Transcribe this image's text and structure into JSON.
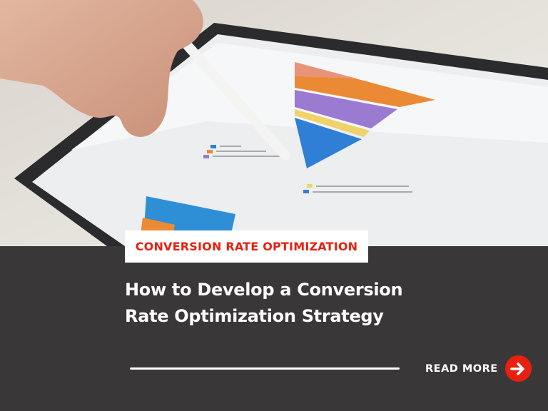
{
  "category_tag": "CONVERSION RATE OPTIMIZATION",
  "title_line1": "How to Develop a Conversion",
  "title_line2": "Rate Optimization Strategy",
  "read_more": "READ MORE",
  "icons": {
    "read_more": "arrow-right-icon"
  },
  "colors": {
    "accent": "#e8200f",
    "panel": "#3a3738",
    "text": "#ffffff"
  }
}
